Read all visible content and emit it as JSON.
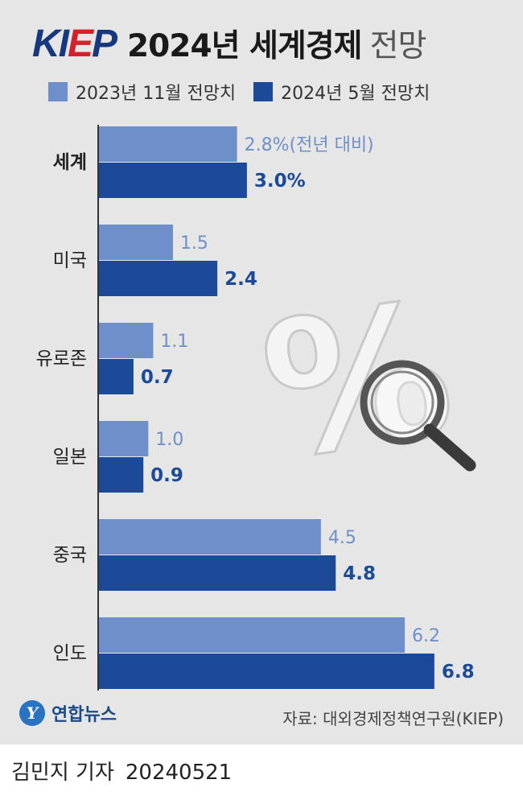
{
  "header": {
    "logo_left": "KI",
    "logo_mid": "E",
    "logo_right": "P",
    "title": "2024년 세계경제",
    "title_suffix": "전망"
  },
  "legend": [
    {
      "label": "2023년 11월 전망치",
      "color": "#6f8fca"
    },
    {
      "label": "2024년 5월 전망치",
      "color": "#1c4a98"
    }
  ],
  "chart_data": {
    "type": "bar",
    "orientation": "horizontal",
    "categories": [
      "세계",
      "미국",
      "유로존",
      "일본",
      "중국",
      "인도"
    ],
    "series": [
      {
        "name": "2023년 11월 전망치",
        "values": [
          2.8,
          1.5,
          1.1,
          1.0,
          4.5,
          6.2
        ],
        "color": "#6f8fca"
      },
      {
        "name": "2024년 5월 전망치",
        "values": [
          3.0,
          2.4,
          0.7,
          0.9,
          4.8,
          6.8
        ],
        "color": "#1c4a98"
      }
    ],
    "old_labels": [
      "2.8%(전년 대비)",
      "1.5",
      "1.1",
      "1.0",
      "4.5",
      "6.2"
    ],
    "new_labels": [
      "3.0%",
      "2.4",
      "0.7",
      "0.9",
      "4.8",
      "6.8"
    ],
    "unit": "%",
    "xlim": [
      0,
      8.5
    ],
    "grid": false,
    "legend_position": "top"
  },
  "footer": {
    "agency": "연합뉴스",
    "source": "자료: 대외경제정책연구원(KIEP)",
    "reporter": "김민지 기자",
    "date": "20240521"
  }
}
